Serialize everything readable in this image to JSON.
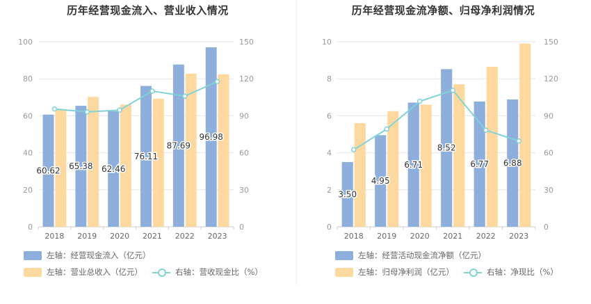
{
  "colors": {
    "bar_left": "#8eaedb",
    "bar_right": "#fed99f",
    "line": "#7fd3d8",
    "grid": "#e6e6e6",
    "axis": "#999999"
  },
  "chart_data": [
    {
      "type": "bar",
      "title": "历年经营现金流入、营业收入情况",
      "categories": [
        "2018",
        "2019",
        "2020",
        "2021",
        "2022",
        "2023"
      ],
      "left_axis": {
        "ylim": [
          0,
          100
        ],
        "ticks": [
          "0",
          "20",
          "40",
          "60",
          "80",
          "100"
        ]
      },
      "right_axis": {
        "ylim": [
          0,
          150
        ],
        "ticks": [
          "0",
          "30",
          "60",
          "90",
          "120",
          "150"
        ]
      },
      "series": [
        {
          "name": "左轴：经营现金流入（亿元）",
          "axis": "left",
          "type": "bar",
          "values": [
            60.62,
            65.38,
            62.46,
            76.11,
            87.69,
            96.98
          ],
          "labels": [
            "60.62",
            "65.38",
            "62.46",
            "76.11",
            "87.69",
            "96.98"
          ]
        },
        {
          "name": "左轴：营业总收入（亿元）",
          "axis": "left",
          "type": "bar",
          "values": [
            63.5,
            70.2,
            66.0,
            69.2,
            82.8,
            82.4
          ]
        },
        {
          "name": "右轴：营收现金比（%）",
          "axis": "right",
          "type": "line",
          "values": [
            95.5,
            93.1,
            94.6,
            110.0,
            105.9,
            117.7
          ]
        }
      ],
      "legend": "bottom-left",
      "grid": true
    },
    {
      "type": "bar",
      "title": "历年经营现金流净额、归母净利润情况",
      "categories": [
        "2018",
        "2019",
        "2020",
        "2021",
        "2022",
        "2023"
      ],
      "left_axis": {
        "ylim": [
          0,
          10
        ],
        "ticks": [
          "0",
          "2",
          "4",
          "6",
          "8",
          "10"
        ]
      },
      "right_axis": {
        "ylim": [
          0,
          150
        ],
        "ticks": [
          "0",
          "30",
          "60",
          "90",
          "120",
          "150"
        ]
      },
      "series": [
        {
          "name": "左轴：经营活动现金流净额（亿元）",
          "axis": "left",
          "type": "bar",
          "values": [
            3.5,
            4.95,
            6.71,
            8.52,
            6.77,
            6.88
          ],
          "labels": [
            "3.50",
            "4.95",
            "6.71",
            "8.52",
            "6.77",
            "6.88"
          ]
        },
        {
          "name": "左轴：归母净利润（亿元）",
          "axis": "left",
          "type": "bar",
          "values": [
            5.6,
            6.25,
            6.6,
            7.7,
            8.65,
            9.9
          ]
        },
        {
          "name": "右轴：净现比（%）",
          "axis": "right",
          "type": "line",
          "values": [
            62.5,
            79.2,
            101.7,
            110.6,
            78.3,
            69.5
          ]
        }
      ],
      "legend": "bottom-left",
      "grid": true
    }
  ]
}
